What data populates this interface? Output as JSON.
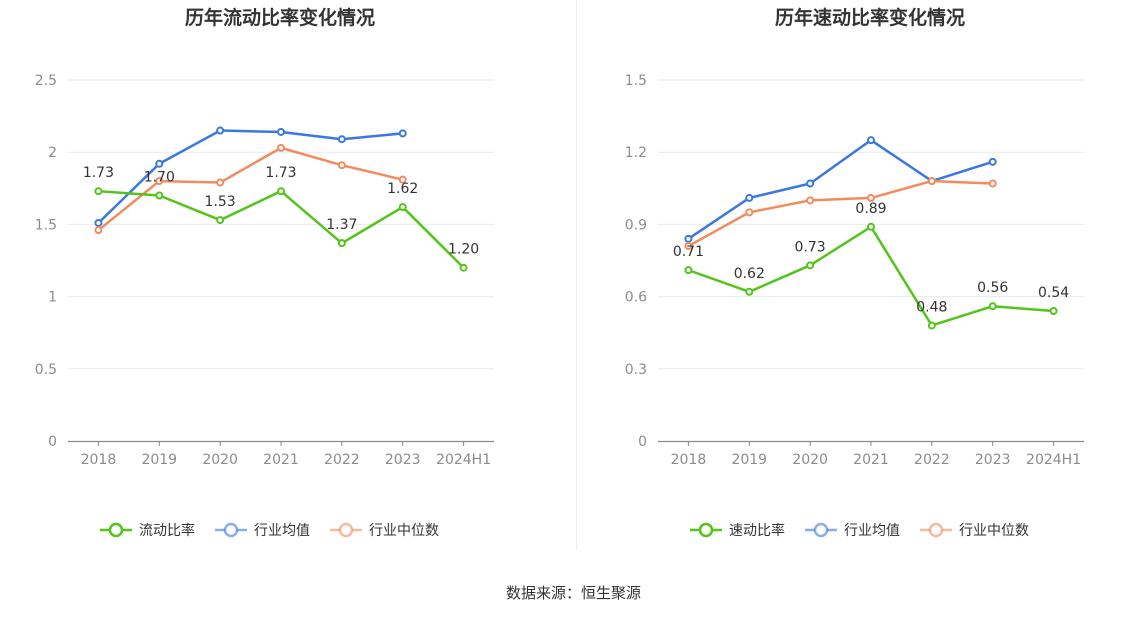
{
  "chart_data": [
    {
      "type": "line",
      "title": "历年流动比率变化情况",
      "categories": [
        "2018",
        "2019",
        "2020",
        "2021",
        "2022",
        "2023",
        "2024H1"
      ],
      "yticks": [
        "0",
        "0.5",
        "1",
        "1.5",
        "2",
        "2.5"
      ],
      "ylim": [
        0,
        2.5
      ],
      "series": [
        {
          "name": "流动比率",
          "color": "#52c41a",
          "values": [
            1.73,
            1.7,
            1.53,
            1.73,
            1.37,
            1.62,
            1.2
          ],
          "labels": [
            "1.73",
            "1.70",
            "1.53",
            "1.73",
            "1.37",
            "1.62",
            "1.20"
          ]
        },
        {
          "name": "行业均值",
          "color": "#3a78e0",
          "values": [
            1.51,
            1.92,
            2.15,
            2.14,
            2.09,
            2.13,
            null
          ]
        },
        {
          "name": "行业中位数",
          "color": "#f28c5e",
          "values": [
            1.46,
            1.8,
            1.79,
            2.03,
            1.91,
            1.81,
            null
          ]
        }
      ],
      "legend_position": "bottom-center",
      "grid": true
    },
    {
      "type": "line",
      "title": "历年速动比率变化情况",
      "categories": [
        "2018",
        "2019",
        "2020",
        "2021",
        "2022",
        "2023",
        "2024H1"
      ],
      "yticks": [
        "0",
        "0.3",
        "0.6",
        "0.9",
        "1.2",
        "1.5"
      ],
      "ylim": [
        0,
        1.5
      ],
      "series": [
        {
          "name": "速动比率",
          "color": "#52c41a",
          "values": [
            0.71,
            0.62,
            0.73,
            0.89,
            0.48,
            0.56,
            0.54
          ],
          "labels": [
            "0.71",
            "0.62",
            "0.73",
            "0.89",
            "0.48",
            "0.56",
            "0.54"
          ]
        },
        {
          "name": "行业均值",
          "color": "#3a78e0",
          "values": [
            0.84,
            1.01,
            1.07,
            1.25,
            1.08,
            1.16,
            null
          ]
        },
        {
          "name": "行业中位数",
          "color": "#f28c5e",
          "values": [
            0.81,
            0.95,
            1.0,
            1.01,
            1.08,
            1.07,
            null
          ]
        }
      ],
      "legend_position": "bottom-center",
      "grid": true
    }
  ],
  "footer": {
    "source": "数据来源：恒生聚源"
  }
}
